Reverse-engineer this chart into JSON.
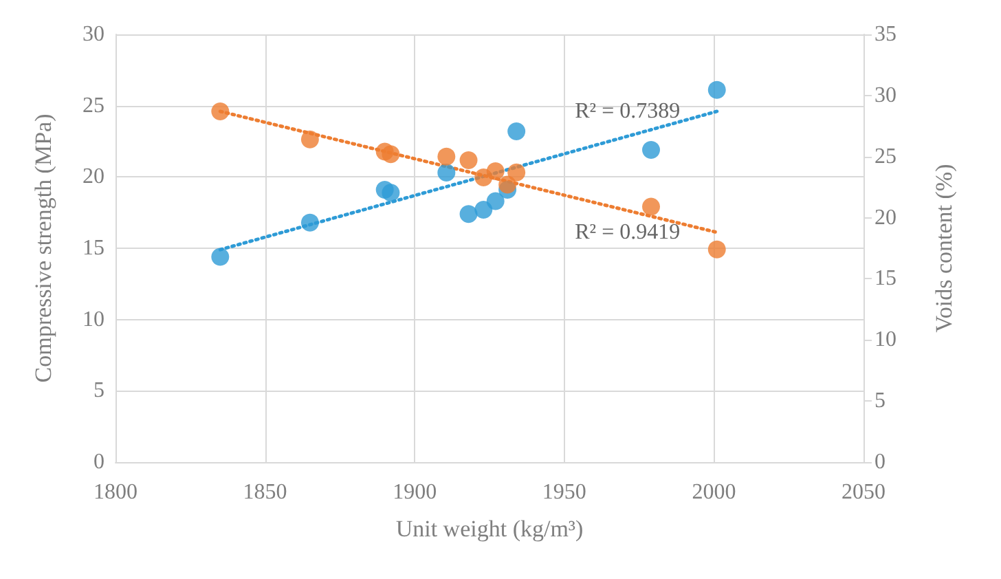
{
  "chart_data": {
    "type": "scatter",
    "xlabel": "Unit weight (kg/m³)",
    "ylabel": "Compressive strength (MPa)",
    "y2label": "Voids content (%)",
    "xlim": [
      1800,
      2050
    ],
    "xticks": [
      1800,
      1850,
      1900,
      1950,
      2000,
      2050
    ],
    "ylim": [
      0,
      30
    ],
    "yticks": [
      0,
      5,
      10,
      15,
      20,
      25,
      30
    ],
    "y2lim": [
      0,
      35
    ],
    "y2ticks": [
      0,
      5,
      10,
      15,
      20,
      25,
      30,
      35
    ],
    "grid": true,
    "marker": "circle",
    "series": [
      {
        "color": "#2e9bd6",
        "x": [
          1835,
          1865,
          1890,
          1892,
          1910.6,
          1918,
          1923,
          1927,
          1931,
          1934,
          1979,
          2001
        ],
        "values": [
          14.4,
          16.8,
          19.1,
          18.9,
          20.3,
          17.4,
          17.7,
          18.3,
          19.1,
          23.2,
          21.9,
          26.1
        ]
      },
      {
        "color": "#ed7d31",
        "axis": "y2",
        "x": [
          1835,
          1865,
          1890,
          1892,
          1910.6,
          1918,
          1923,
          1927,
          1931,
          1934,
          1979,
          2001
        ],
        "values": [
          28.7,
          26.4,
          25.4,
          25.2,
          25.0,
          24.7,
          23.3,
          23.8,
          22.7,
          23.7,
          20.9,
          17.4
        ]
      },
      {
        "type": "line",
        "color": "#2e9bd6",
        "line_style": "dotted",
        "marker": "none",
        "x": [
          1835,
          2001
        ],
        "values": [
          14.9,
          24.6
        ]
      },
      {
        "type": "line",
        "color": "#ed7d31",
        "axis": "y2",
        "line_style": "dotted",
        "marker": "none",
        "x": [
          1835,
          2001
        ],
        "values": [
          28.7,
          18.8
        ]
      }
    ],
    "annotations": [
      "R² = 0.7389",
      "R² = 0.9419"
    ]
  }
}
